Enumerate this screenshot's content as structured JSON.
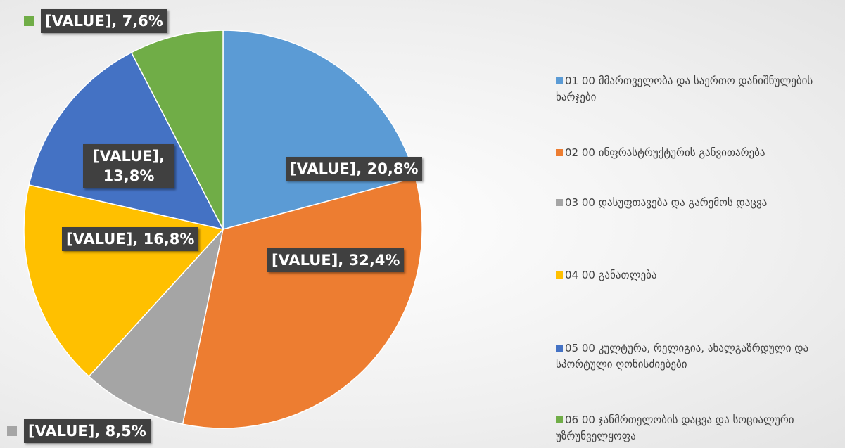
{
  "chart_data": {
    "type": "pie",
    "categories": [
      "01 00 მმართველობა და საერთო დანიშნულების ხარჯები",
      "02 00 ინფრასტრუქტურის განვითარება",
      "03 00 დასუფთავება  და გარემოს დაცვა",
      "04 00 განათლება",
      "05 00 კულტურა, რელიგია, ახალგაზრდული და სპორტული ღონისძიებები",
      "06 00 ჯანმრთელობის დაცვა და სოციალური უზრუნველყოფა"
    ],
    "values": [
      20.8,
      32.4,
      8.5,
      16.8,
      13.8,
      7.6
    ],
    "value_labels": [
      "[VALUE], 20,8%",
      "[VALUE], 32,4%",
      "[VALUE], 8,5%",
      "[VALUE], 16,8%",
      "[VALUE], 13,8%",
      "[VALUE], 7,6%"
    ],
    "colors": [
      "#5b9bd5",
      "#ed7d31",
      "#a5a5a5",
      "#ffc000",
      "#4472c4",
      "#70ad47"
    ],
    "legend": "right"
  }
}
